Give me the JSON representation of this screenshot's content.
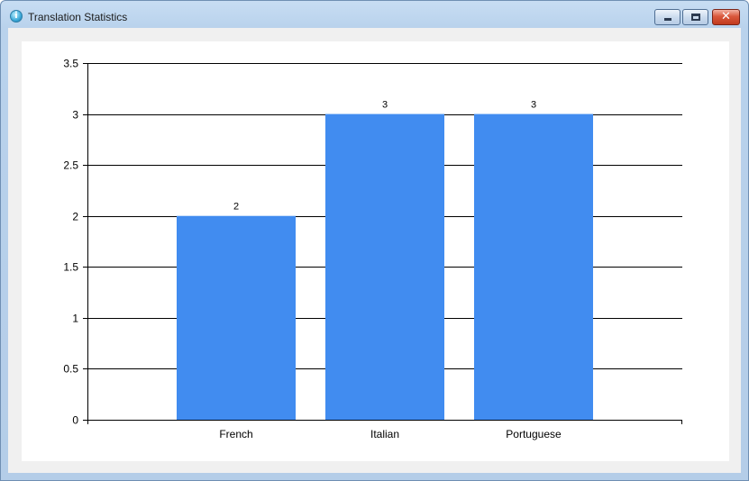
{
  "window": {
    "title": "Translation Statistics",
    "icon": "info-icon",
    "controls": [
      "minimize",
      "maximize",
      "close"
    ]
  },
  "chart_data": {
    "type": "bar",
    "categories": [
      "French",
      "Italian",
      "Portuguese"
    ],
    "values": [
      2,
      3,
      3
    ],
    "data_labels": [
      "2",
      "3",
      "3"
    ],
    "title": "",
    "xlabel": "",
    "ylabel": "",
    "ylim": [
      0,
      3.5
    ],
    "yticks": [
      0,
      0.5,
      1,
      1.5,
      2,
      2.5,
      3,
      3.5
    ],
    "ytick_labels": [
      "0",
      "0.5",
      "1",
      "1.5",
      "2",
      "2.5",
      "3",
      "3.5"
    ],
    "grid": true,
    "legend": "none",
    "bar_color": "#418cf0"
  }
}
